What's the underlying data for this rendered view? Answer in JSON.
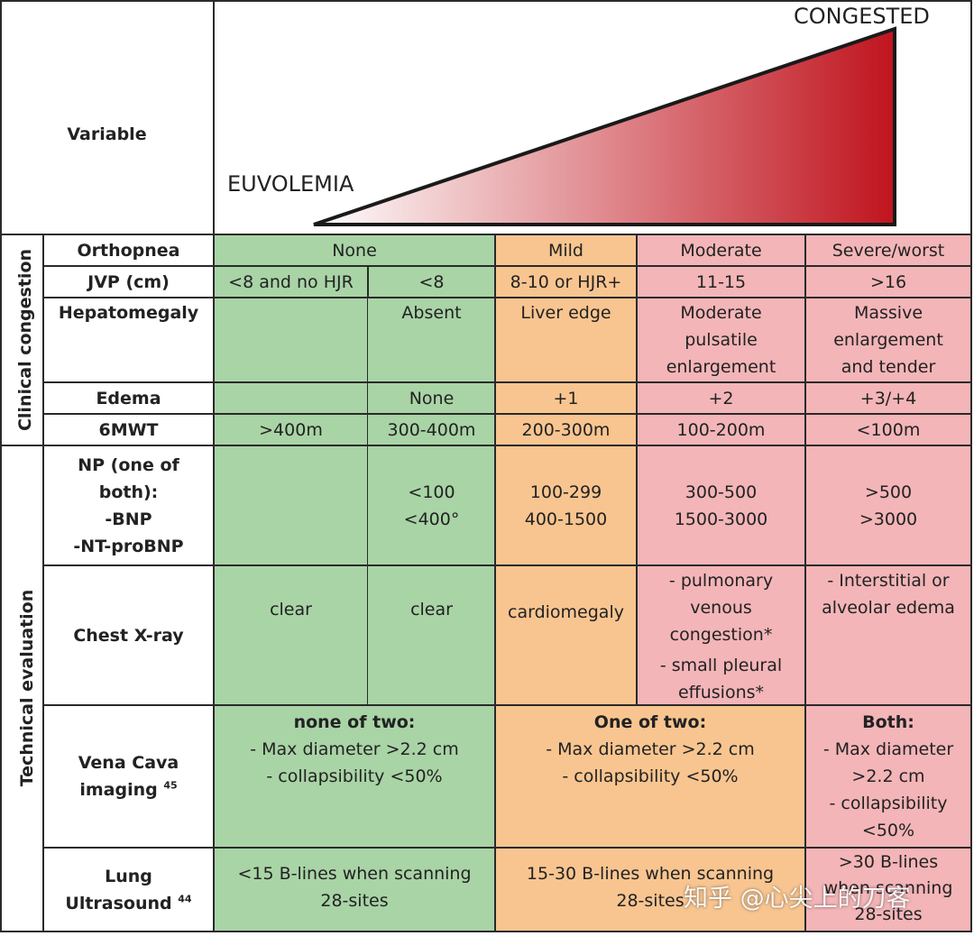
{
  "header": {
    "variable": "Variable",
    "euvolemia": "EUVOLEMIA",
    "congested": "CONGESTED",
    "gradient": [
      "#ffffff",
      "#c0141e"
    ]
  },
  "sections": {
    "clinical": "Clinical congestion",
    "technical": "Technical evaluation"
  },
  "colors": {
    "green": "#a9d4a6",
    "orange": "#f8c590",
    "pink": "#f3b5b8"
  },
  "rows": {
    "orthopnea": {
      "label": "Orthopnea",
      "none": "None",
      "mild": "Mild",
      "moderate": "Moderate",
      "severe": "Severe/worst"
    },
    "jvp": {
      "label": "JVP (cm)",
      "c1": "<8 and no HJR",
      "c2": "<8",
      "c3": "8-10 or HJR+",
      "c4": "11-15",
      "c5": ">16"
    },
    "hepatomegaly": {
      "label": "Hepatomegaly",
      "c2": "Absent",
      "c3": "Liver edge",
      "c4": [
        "Moderate",
        "pulsatile",
        "enlargement"
      ],
      "c5": [
        "Massive",
        "enlargement",
        "and tender"
      ]
    },
    "edema": {
      "label": "Edema",
      "c2": "None",
      "c3": "+1",
      "c4": "+2",
      "c5": "+3/+4"
    },
    "sixmwt": {
      "label": "6MWT",
      "c1": ">400m",
      "c2": "300-400m",
      "c3": "200-300m",
      "c4": "100-200m",
      "c5": "<100m"
    },
    "np": {
      "label": [
        "NP (one of",
        "both):",
        "-BNP",
        "-NT-proBNP"
      ],
      "c2": [
        "<100",
        "<400°"
      ],
      "c3": [
        "100-299",
        "400-1500"
      ],
      "c4": [
        "300-500",
        "1500-3000"
      ],
      "c5": [
        ">500",
        ">3000"
      ]
    },
    "chest": {
      "label": "Chest X-ray",
      "c1": "clear",
      "c2": "clear",
      "c3": "cardiomegaly",
      "c4": [
        "- pulmonary",
        "venous",
        "congestion*",
        "- small pleural",
        "effusions*"
      ],
      "c5": [
        "- Interstitial or",
        "alveolar edema"
      ]
    },
    "vena": {
      "label": [
        "Vena Cava",
        "imaging"
      ],
      "ref": "45",
      "a": [
        "none of two:",
        "- Max diameter >2.2 cm",
        "- collapsibility <50%"
      ],
      "b": [
        "One of two:",
        "- Max diameter >2.2 cm",
        "- collapsibility <50%"
      ],
      "c": [
        "Both:",
        "- Max diameter",
        ">2.2 cm",
        "- collapsibility",
        "<50%"
      ]
    },
    "lung": {
      "label": [
        "Lung",
        "Ultrasound"
      ],
      "ref": "44",
      "a": [
        "<15 B-lines when scanning",
        "28-sites"
      ],
      "b": [
        "15-30 B-lines when scanning",
        "28-sites"
      ],
      "c": [
        ">30 B-lines",
        "when scanning",
        "28-sites"
      ]
    }
  },
  "watermark": "知乎 @心尖上的刀客"
}
